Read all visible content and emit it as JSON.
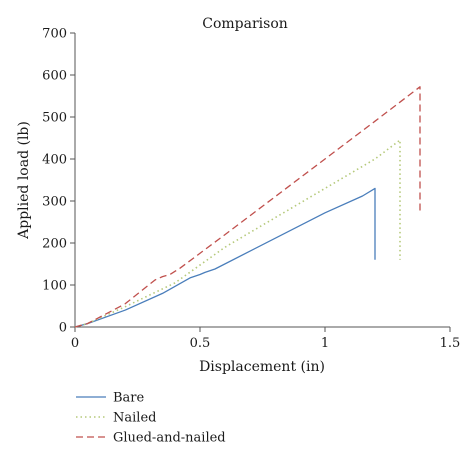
{
  "chart_data": {
    "type": "line",
    "title": "Comparison",
    "xlabel": "Displacement (in)",
    "ylabel": "Applied load (lb)",
    "xlim": [
      0,
      1.5
    ],
    "ylim": [
      0,
      700
    ],
    "xticks": [
      "0",
      "0.5",
      "1",
      "1.5"
    ],
    "xtick_values": [
      0,
      0.5,
      1,
      1.5
    ],
    "yticks": [
      "0",
      "100",
      "200",
      "300",
      "400",
      "500",
      "600",
      "700"
    ],
    "ytick_values": [
      0,
      100,
      200,
      300,
      400,
      500,
      600,
      700
    ],
    "grid": false,
    "legend_position": "bottom-left",
    "series": [
      {
        "name": "Bare",
        "color": "#4a7ebb",
        "dash": "solid",
        "points": [
          [
            0,
            0
          ],
          [
            0.05,
            8
          ],
          [
            0.2,
            40
          ],
          [
            0.35,
            80
          ],
          [
            0.46,
            117
          ],
          [
            0.5,
            125
          ],
          [
            0.52,
            130
          ],
          [
            0.56,
            138
          ],
          [
            1.0,
            272
          ],
          [
            1.15,
            312
          ],
          [
            1.2,
            330
          ],
          [
            1.2,
            160
          ]
        ]
      },
      {
        "name": "Nailed",
        "color": "#b5c97a",
        "dash": "dotted",
        "points": [
          [
            0,
            0
          ],
          [
            0.05,
            8
          ],
          [
            0.2,
            48
          ],
          [
            0.4,
            105
          ],
          [
            0.6,
            190
          ],
          [
            1.0,
            330
          ],
          [
            1.2,
            400
          ],
          [
            1.3,
            445
          ],
          [
            1.3,
            160
          ]
        ]
      },
      {
        "name": "Glued-and-nailed",
        "color": "#c0504d",
        "dash": "dashed",
        "points": [
          [
            0,
            0
          ],
          [
            0.05,
            8
          ],
          [
            0.2,
            55
          ],
          [
            0.32,
            112
          ],
          [
            0.35,
            120
          ],
          [
            0.38,
            125
          ],
          [
            0.42,
            140
          ],
          [
            0.6,
            220
          ],
          [
            1.0,
            400
          ],
          [
            1.2,
            490
          ],
          [
            1.38,
            572
          ],
          [
            1.38,
            270
          ]
        ]
      }
    ]
  }
}
